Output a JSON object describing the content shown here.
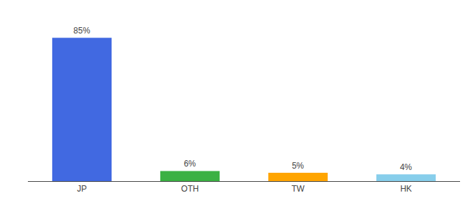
{
  "chart_data": {
    "type": "bar",
    "categories": [
      "JP",
      "OTH",
      "TW",
      "HK"
    ],
    "values": [
      85,
      6,
      5,
      4
    ],
    "value_labels": [
      "85%",
      "6%",
      "5%",
      "4%"
    ],
    "data_labels": true,
    "colors": [
      "#4169E1",
      "#3BB143",
      "#FFA500",
      "#87CEEB"
    ],
    "ylim": [
      0,
      95
    ],
    "grid": false,
    "tick_labels": "x"
  }
}
